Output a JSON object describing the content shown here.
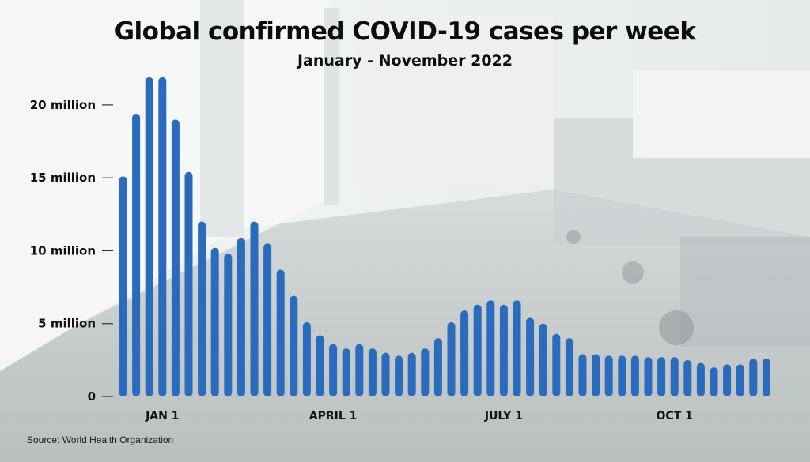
{
  "chart_data": {
    "type": "bar",
    "title": "Global confirmed COVID-19 cases per week",
    "subtitle": "January - November 2022",
    "source": "Source: World Health Organization",
    "y_ticks": [
      {
        "value": 0,
        "label": "0"
      },
      {
        "value": 5,
        "label": "5 million"
      },
      {
        "value": 10,
        "label": "10 million"
      },
      {
        "value": 15,
        "label": "15 million"
      },
      {
        "value": 20,
        "label": "20 million"
      }
    ],
    "x_ticks": [
      {
        "index": 3,
        "label": "JAN 1"
      },
      {
        "index": 16,
        "label": "APRIL 1"
      },
      {
        "index": 29,
        "label": "JULY 1"
      },
      {
        "index": 42,
        "label": "OCT 1"
      }
    ],
    "ylim": [
      0,
      22
    ],
    "grid": false,
    "bar_color": "#2a6bbd",
    "values": [
      15.1,
      19.4,
      21.9,
      21.9,
      19.0,
      15.4,
      12.0,
      10.2,
      9.8,
      10.9,
      12.0,
      10.5,
      8.7,
      6.9,
      5.1,
      4.2,
      3.6,
      3.3,
      3.6,
      3.3,
      3.0,
      2.8,
      3.0,
      3.3,
      4.0,
      5.1,
      5.9,
      6.3,
      6.6,
      6.3,
      6.6,
      5.4,
      5.0,
      4.3,
      4.0,
      2.9,
      2.9,
      2.8,
      2.8,
      2.8,
      2.7,
      2.7,
      2.7,
      2.5,
      2.3,
      2.0,
      2.2,
      2.2,
      2.6,
      2.6
    ]
  }
}
